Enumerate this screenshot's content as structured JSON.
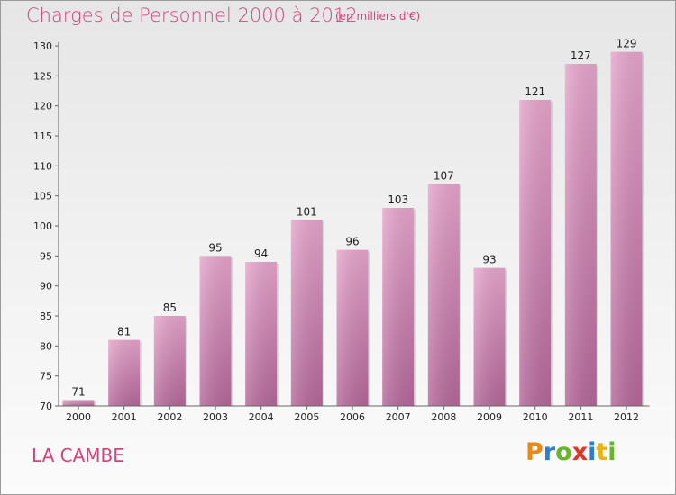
{
  "header": {
    "title": "Charges de Personnel 2000 à 2012",
    "subtitle": "(en milliers d'€)"
  },
  "footer": {
    "commune": "LA CAMBE",
    "logo": {
      "letters": [
        "P",
        "r",
        "o",
        "x",
        "i",
        "t",
        "i"
      ],
      "colors": [
        "#e88a1a",
        "#2c7fd0",
        "#6ab42d",
        "#d93a2b",
        "#2c7fd0",
        "#e8b21a",
        "#6ab42d"
      ]
    }
  },
  "colors": {
    "bar_top": "#e6a5cc",
    "bar_bottom": "#b5689a",
    "text_accent": "#d0457c"
  },
  "chart_data": {
    "type": "bar",
    "categories": [
      "2000",
      "2001",
      "2002",
      "2003",
      "2004",
      "2005",
      "2006",
      "2007",
      "2008",
      "2009",
      "2010",
      "2011",
      "2012"
    ],
    "values": [
      71,
      81,
      85,
      95,
      94,
      101,
      96,
      103,
      107,
      93,
      121,
      127,
      129
    ],
    "data_labels": [
      "71",
      "81",
      "85",
      "95",
      "94",
      "101",
      "96",
      "103",
      "107",
      "93",
      "121",
      "127",
      "129"
    ],
    "yticks": [
      "70",
      "75",
      "80",
      "85",
      "90",
      "95",
      "100",
      "105",
      "110",
      "115",
      "120",
      "125",
      "130"
    ],
    "ylim": [
      70,
      130
    ],
    "grid": false,
    "title": "Charges de Personnel 2000 à 2012",
    "xlabel": "",
    "ylabel": ""
  }
}
